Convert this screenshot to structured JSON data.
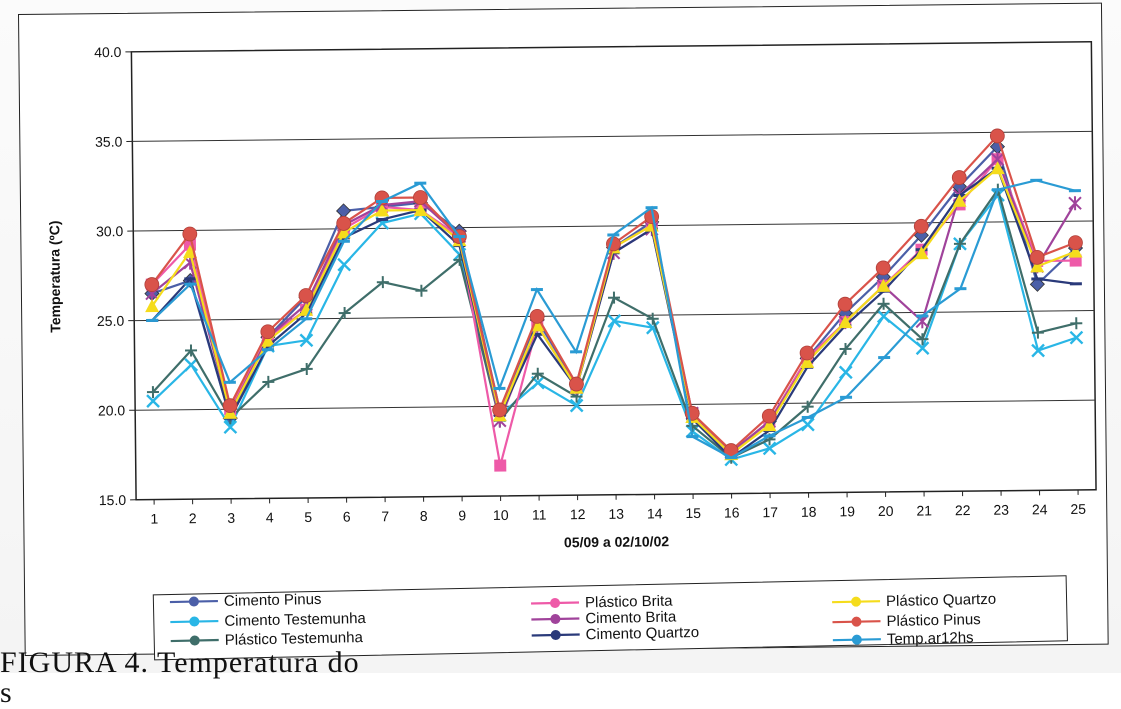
{
  "chart_data": {
    "type": "line",
    "ylabel": "Temperatura (ºC)",
    "xlabel": "05/09 a 02/10/02",
    "ylim": [
      15,
      40
    ],
    "yticks": [
      "15.0",
      "20.0",
      "25.0",
      "30.0",
      "35.0",
      "40.0"
    ],
    "categories": [
      "1",
      "2",
      "3",
      "4",
      "5",
      "6",
      "7",
      "8",
      "9",
      "10",
      "11",
      "12",
      "13",
      "14",
      "15",
      "16",
      "17",
      "18",
      "19",
      "20",
      "21",
      "22",
      "23",
      "24",
      "25"
    ],
    "grid": "horizontal",
    "legend_position": "bottom",
    "series": [
      {
        "name": "Cimento Pinus",
        "color": "#4b5fa8",
        "marker": "diamond",
        "values": [
          26.5,
          27.2,
          19.5,
          24.0,
          26.2,
          31.0,
          31.2,
          31.4,
          29.8,
          19.8,
          24.8,
          21.2,
          28.8,
          30.2,
          19.5,
          17.3,
          19.0,
          22.5,
          25.0,
          27.0,
          29.3,
          32.0,
          34.2,
          26.5,
          28.5
        ]
      },
      {
        "name": "Cimento Testemunha",
        "color": "#29b6e6",
        "marker": "x",
        "values": [
          20.5,
          22.5,
          19.0,
          23.5,
          23.8,
          28.0,
          30.3,
          30.8,
          28.5,
          19.5,
          21.3,
          20.0,
          24.7,
          24.3,
          18.5,
          16.9,
          17.5,
          18.8,
          21.7,
          24.8,
          23.0,
          28.8,
          31.5,
          22.8,
          23.5
        ]
      },
      {
        "name": "Plástico Testemunha",
        "color": "#3f6e6a",
        "marker": "plus",
        "values": [
          21.0,
          23.3,
          19.5,
          21.5,
          22.2,
          25.3,
          27.0,
          26.5,
          28.2,
          19.2,
          21.8,
          20.5,
          26.0,
          24.8,
          18.8,
          17.0,
          18.0,
          19.8,
          23.0,
          25.5,
          23.5,
          28.8,
          31.8,
          23.8,
          24.3
        ]
      },
      {
        "name": "Plástico Brita",
        "color": "#ee5aa8",
        "marker": "square",
        "values": [
          27.0,
          29.2,
          20.0,
          24.0,
          25.5,
          30.0,
          31.2,
          31.0,
          29.5,
          16.7,
          24.5,
          21.0,
          28.8,
          30.0,
          19.5,
          17.3,
          19.0,
          22.5,
          24.5,
          26.5,
          28.5,
          31.0,
          33.5,
          27.8,
          27.8
        ]
      },
      {
        "name": "Cimento Brita",
        "color": "#a0439b",
        "marker": "asterisk",
        "values": [
          26.5,
          28.2,
          19.8,
          24.0,
          25.8,
          30.2,
          31.3,
          31.5,
          29.5,
          19.2,
          24.5,
          21.0,
          28.5,
          29.8,
          19.5,
          17.3,
          19.0,
          22.3,
          24.5,
          26.5,
          24.5,
          31.5,
          33.5,
          27.5,
          31.0
        ]
      },
      {
        "name": "Cimento Quartzo",
        "color": "#2a3a7a",
        "marker": "dash",
        "values": [
          25.0,
          27.3,
          19.5,
          23.5,
          25.3,
          29.5,
          30.5,
          31.0,
          29.0,
          19.5,
          24.0,
          21.0,
          28.5,
          29.8,
          19.2,
          17.0,
          18.5,
          22.0,
          24.3,
          26.2,
          28.5,
          31.5,
          33.0,
          26.8,
          26.5
        ]
      },
      {
        "name": "Plástico Quartzo",
        "color": "#f5dc1c",
        "marker": "triangle",
        "values": [
          25.8,
          28.8,
          19.8,
          23.8,
          25.5,
          29.8,
          31.0,
          31.0,
          29.3,
          19.5,
          24.5,
          21.0,
          28.8,
          30.0,
          19.3,
          17.2,
          18.8,
          22.3,
          24.5,
          26.5,
          28.3,
          31.2,
          33.0,
          27.5,
          28.3
        ]
      },
      {
        "name": "Plástico Pinus",
        "color": "#d9534a",
        "marker": "circle",
        "values": [
          27.0,
          29.8,
          20.2,
          24.3,
          26.3,
          30.3,
          31.7,
          31.7,
          29.5,
          19.8,
          25.0,
          21.2,
          29.0,
          30.5,
          19.5,
          17.4,
          19.3,
          22.8,
          25.5,
          27.5,
          29.8,
          32.5,
          34.8,
          28.0,
          28.8
        ]
      },
      {
        "name": "Temp.ar12hs",
        "color": "#2a9bd4",
        "marker": "dash",
        "values": [
          25.0,
          27.0,
          21.5,
          23.3,
          25.0,
          29.3,
          31.5,
          32.5,
          29.5,
          21.0,
          26.5,
          23.0,
          29.5,
          31.0,
          18.2,
          17.0,
          18.2,
          19.2,
          20.3,
          22.5,
          24.8,
          26.3,
          31.8,
          32.3,
          31.7
        ]
      }
    ]
  },
  "caption": "FIGURA 4. Temperatura do s"
}
